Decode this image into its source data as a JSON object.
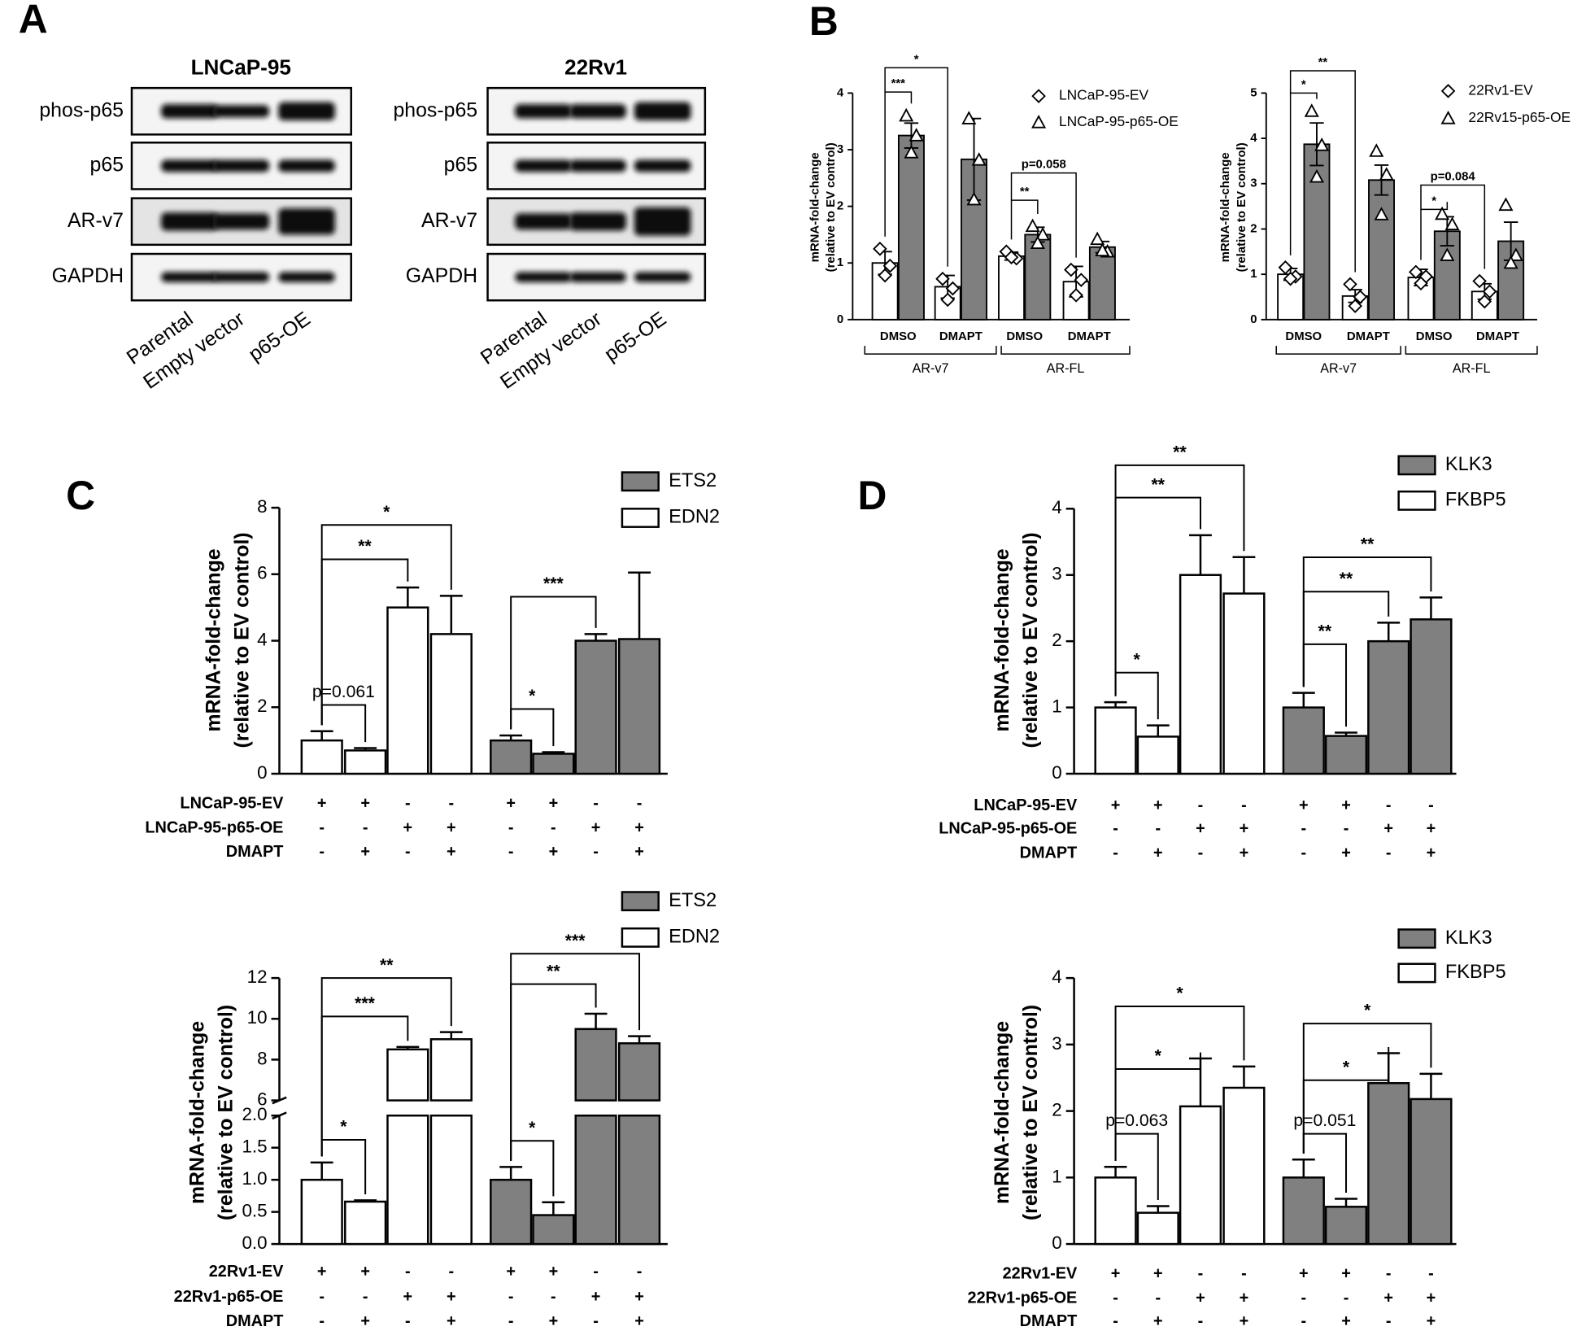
{
  "panels": [
    "A",
    "B",
    "C",
    "D"
  ],
  "blots": [
    {
      "title": "LNCaP-95",
      "rows": [
        "phos-p65",
        "p65",
        "AR-v7",
        "GAPDH"
      ],
      "lanes": [
        "Parental",
        "Empty vector",
        "p65-OE"
      ]
    },
    {
      "title": "22Rv1",
      "rows": [
        "phos-p65",
        "p65",
        "AR-v7",
        "GAPDH"
      ],
      "lanes": [
        "Parental",
        "Empty vector",
        "p65-OE"
      ]
    }
  ],
  "chart_data": [
    {
      "type": "bar",
      "y_label": [
        "mRNA-fold-change",
        "(relative to EV control)"
      ],
      "categories": [
        "DMSO",
        "DMAPT",
        "DMSO",
        "DMAPT"
      ],
      "groups": [
        "AR-v7",
        "AR-FL"
      ],
      "series": [
        {
          "name": "LNCaP-95-EV",
          "color": "#ffffff",
          "marker": "diamond",
          "values": [
            1.0,
            0.58,
            1.12,
            0.67
          ],
          "errors": [
            0.2,
            0.2,
            0.07,
            0.27
          ],
          "points": [
            [
              1.25,
              0.95,
              0.78
            ],
            [
              0.72,
              0.55,
              0.35
            ],
            [
              1.2,
              1.08,
              1.1
            ],
            [
              0.88,
              0.7,
              0.43
            ]
          ]
        },
        {
          "name": "LNCaP-95-p65-OE",
          "color": "#7f7f7f",
          "marker": "triangle",
          "values": [
            3.25,
            2.83,
            1.5,
            1.28
          ],
          "errors": [
            0.22,
            0.72,
            0.13,
            0.1
          ],
          "points": [
            [
              3.6,
              3.25,
              2.95
            ],
            [
              3.55,
              2.82,
              2.12
            ],
            [
              1.65,
              1.5,
              1.35
            ],
            [
              1.42,
              1.2,
              1.22
            ]
          ]
        }
      ],
      "ylim": [
        0,
        4
      ],
      "yticks": [
        0,
        1,
        2,
        3,
        4
      ],
      "annotations": [
        "***",
        "*",
        "**",
        "p=0.058"
      ]
    },
    {
      "type": "bar",
      "y_label": [
        "mRNA-fold-change",
        "(relative to EV control)"
      ],
      "categories": [
        "DMSO",
        "DMAPT",
        "DMSO",
        "DMAPT"
      ],
      "groups": [
        "AR-v7",
        "AR-FL"
      ],
      "series": [
        {
          "name": "22Rv1-EV",
          "color": "#ffffff",
          "marker": "diamond",
          "values": [
            1.0,
            0.52,
            0.93,
            0.62
          ],
          "errors": [
            0.13,
            0.14,
            0.18,
            0.17
          ],
          "points": [
            [
              1.15,
              0.95,
              0.9
            ],
            [
              0.78,
              0.5,
              0.3
            ],
            [
              1.05,
              0.95,
              0.8
            ],
            [
              0.85,
              0.62,
              0.4
            ]
          ]
        },
        {
          "name": "22Rv15-p65-OE",
          "color": "#7f7f7f",
          "marker": "triangle",
          "values": [
            3.87,
            3.08,
            1.95,
            1.73
          ],
          "errors": [
            0.47,
            0.33,
            0.32,
            0.42
          ],
          "points": [
            [
              4.6,
              3.85,
              3.15
            ],
            [
              3.72,
              3.2,
              2.32
            ],
            [
              2.33,
              2.1,
              1.42
            ],
            [
              2.53,
              1.42,
              1.25
            ]
          ]
        }
      ],
      "ylim": [
        0,
        5
      ],
      "yticks": [
        0,
        1,
        2,
        3,
        4,
        5
      ],
      "annotations": [
        "*",
        "**",
        "*",
        "p=0.084"
      ]
    },
    {
      "type": "bar",
      "y_label": [
        "mRNA-fold-change",
        "(relative to EV control)"
      ],
      "series": [
        {
          "name": "ETS2",
          "color": "#808080",
          "values": [
            null,
            null,
            null,
            null,
            1.0,
            0.6,
            4.0,
            4.05
          ],
          "errors": [
            null,
            null,
            null,
            null,
            0.15,
            0.05,
            0.2,
            2.0
          ]
        },
        {
          "name": "EDN2",
          "color": "#ffffff",
          "values": [
            1.0,
            0.7,
            5.0,
            4.2,
            null,
            null,
            null,
            null
          ],
          "errors": [
            0.28,
            0.07,
            0.6,
            1.15,
            null,
            null,
            null,
            null
          ]
        }
      ],
      "conditions": [
        {
          "label": "LNCaP-95-EV",
          "values": [
            "+",
            "+",
            "-",
            "-",
            "+",
            "+",
            "-",
            "-"
          ]
        },
        {
          "label": "LNCaP-95-p65-OE",
          "values": [
            "-",
            "-",
            "+",
            "+",
            "-",
            "-",
            "+",
            "+"
          ]
        },
        {
          "label": "DMAPT",
          "values": [
            "-",
            "+",
            "-",
            "+",
            "-",
            "+",
            "-",
            "+"
          ]
        }
      ],
      "ylim": [
        0,
        8
      ],
      "yticks": [
        0,
        2,
        4,
        6,
        8
      ],
      "annotations": [
        "p=0.061",
        "**",
        "*",
        "*",
        "***"
      ]
    },
    {
      "type": "bar",
      "y_label": [
        "mRNA-fold-change",
        "(relative to EV control)"
      ],
      "series": [
        {
          "name": "ETS2",
          "color": "#808080",
          "values": [
            null,
            null,
            null,
            null,
            1.0,
            0.45,
            9.5,
            8.8
          ],
          "errors": [
            null,
            null,
            null,
            null,
            0.2,
            0.2,
            0.75,
            0.35
          ]
        },
        {
          "name": "EDN2",
          "color": "#ffffff",
          "values": [
            1.0,
            0.66,
            8.5,
            9.0,
            null,
            null,
            null,
            null
          ],
          "errors": [
            0.27,
            0.02,
            0.12,
            0.35,
            null,
            null,
            null,
            null
          ]
        }
      ],
      "conditions": [
        {
          "label": "22Rv1-EV",
          "values": [
            "+",
            "+",
            "-",
            "-",
            "+",
            "+",
            "-",
            "-"
          ]
        },
        {
          "label": "22Rv1-p65-OE",
          "values": [
            "-",
            "-",
            "+",
            "+",
            "-",
            "-",
            "+",
            "+"
          ]
        },
        {
          "label": "DMAPT",
          "values": [
            "-",
            "+",
            "-",
            "+",
            "-",
            "+",
            "-",
            "+"
          ]
        }
      ],
      "y_segments": [
        {
          "ylim": [
            0,
            2
          ],
          "yticks": [
            {
              "value": 0,
              "label": "0.0"
            },
            0.5,
            {
              "value": 1,
              "label": "1.0"
            },
            1.5,
            {
              "value": 2,
              "label": "2.0"
            }
          ]
        },
        {
          "ylim": [
            6,
            12
          ],
          "yticks": [
            6,
            8,
            10,
            12
          ]
        }
      ],
      "annotations": [
        "*",
        "***",
        "**",
        "*",
        "**",
        "***"
      ]
    },
    {
      "type": "bar",
      "y_label": [
        "mRNA-fold-change",
        "(relative to EV control)"
      ],
      "series": [
        {
          "name": "KLK3",
          "color": "#808080",
          "values": [
            null,
            null,
            null,
            null,
            1.0,
            0.57,
            2.0,
            2.33
          ],
          "errors": [
            null,
            null,
            null,
            null,
            0.22,
            0.05,
            0.28,
            0.33
          ]
        },
        {
          "name": "FKBP5",
          "color": "#ffffff",
          "values": [
            1.0,
            0.56,
            3.0,
            2.72,
            null,
            null,
            null,
            null
          ],
          "errors": [
            0.08,
            0.17,
            0.6,
            0.55,
            null,
            null,
            null,
            null
          ]
        }
      ],
      "conditions": [
        {
          "label": "LNCaP-95-EV",
          "values": [
            "+",
            "+",
            "-",
            "-",
            "+",
            "+",
            "-",
            "-"
          ]
        },
        {
          "label": "LNCaP-95-p65-OE",
          "values": [
            "-",
            "-",
            "+",
            "+",
            "-",
            "-",
            "+",
            "+"
          ]
        },
        {
          "label": "DMAPT",
          "values": [
            "-",
            "+",
            "-",
            "+",
            "-",
            "+",
            "-",
            "+"
          ]
        }
      ],
      "ylim": [
        0,
        4
      ],
      "yticks": [
        0,
        1,
        2,
        3,
        4
      ],
      "annotations": [
        "*",
        "**",
        "**",
        "**",
        "**",
        "**"
      ]
    },
    {
      "type": "bar",
      "y_label": [
        "mRNA-fold-change",
        "(relative to EV control)"
      ],
      "series": [
        {
          "name": "KLK3",
          "color": "#808080",
          "values": [
            null,
            null,
            null,
            null,
            1.0,
            0.56,
            2.42,
            2.18
          ],
          "errors": [
            null,
            null,
            null,
            null,
            0.27,
            0.12,
            0.45,
            0.38
          ]
        },
        {
          "name": "FKBP5",
          "color": "#ffffff",
          "values": [
            1.0,
            0.47,
            2.07,
            2.35,
            null,
            null,
            null,
            null
          ],
          "errors": [
            0.16,
            0.1,
            0.72,
            0.32,
            null,
            null,
            null,
            null
          ]
        }
      ],
      "conditions": [
        {
          "label": "22Rv1-EV",
          "values": [
            "+",
            "+",
            "-",
            "-",
            "+",
            "+",
            "-",
            "-"
          ]
        },
        {
          "label": "22Rv1-p65-OE",
          "values": [
            "-",
            "-",
            "+",
            "+",
            "-",
            "-",
            "+",
            "+"
          ]
        },
        {
          "label": "DMAPT",
          "values": [
            "-",
            "+",
            "-",
            "+",
            "-",
            "+",
            "-",
            "+"
          ]
        }
      ],
      "ylim": [
        0,
        4
      ],
      "yticks": [
        0,
        1,
        2,
        3,
        4
      ],
      "annotations": [
        "p=0.063",
        "*",
        "*",
        "p=0.051",
        "*",
        "*"
      ]
    }
  ]
}
